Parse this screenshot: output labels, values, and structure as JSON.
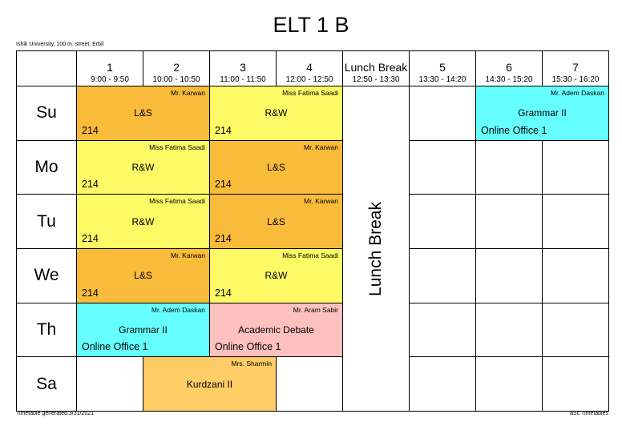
{
  "header": {
    "title": "ELT 1 B",
    "subtitle": "Ishik University, 100 m. street, Erbil"
  },
  "table": {
    "columns": [
      {
        "label": "1",
        "time": "9:00 - 9:50"
      },
      {
        "label": "2",
        "time": "10:00 - 10:50"
      },
      {
        "label": "3",
        "time": "11:00 - 11:50"
      },
      {
        "label": "4",
        "time": "12:00 - 12:50"
      },
      {
        "label": "Lunch Break",
        "time": "12:50 - 13:30",
        "lunch": true
      },
      {
        "label": "5",
        "time": "13:30 - 14:20"
      },
      {
        "label": "6",
        "time": "14:30 - 15:20"
      },
      {
        "label": "7",
        "time": "15:30 - 16:20"
      }
    ],
    "lunch_text": "Lunch Break",
    "rows": [
      {
        "day": "Su",
        "cells": [
          {
            "span": 2,
            "subject": "L&S",
            "teacher": "Mr. Karwan",
            "room": "214",
            "color": "#f9bb3a"
          },
          {
            "span": 2,
            "subject": "R&W",
            "teacher": "Miss Fatima Saadi",
            "room": "214",
            "color": "#fdfa66"
          },
          null,
          {
            "span": 2,
            "subject": "Grammar II",
            "teacher": "Mr. Adem Daskan",
            "room": "Online Office 1",
            "color": "#66ffff"
          }
        ]
      },
      {
        "day": "Mo",
        "cells": [
          {
            "span": 2,
            "subject": "R&W",
            "teacher": "Miss Fatima Saadi",
            "room": "214",
            "color": "#fdfa66"
          },
          {
            "span": 2,
            "subject": "L&S",
            "teacher": "Mr. Karwan",
            "room": "214",
            "color": "#f9bb3a"
          },
          null,
          null,
          null
        ]
      },
      {
        "day": "Tu",
        "cells": [
          {
            "span": 2,
            "subject": "R&W",
            "teacher": "Miss Fatima Saadi",
            "room": "214",
            "color": "#fdfa66"
          },
          {
            "span": 2,
            "subject": "L&S",
            "teacher": "Mr. Karwan",
            "room": "214",
            "color": "#f9bb3a"
          },
          null,
          null,
          null
        ]
      },
      {
        "day": "We",
        "cells": [
          {
            "span": 2,
            "subject": "L&S",
            "teacher": "Mr. Karwan",
            "room": "214",
            "color": "#f9bb3a"
          },
          {
            "span": 2,
            "subject": "R&W",
            "teacher": "Miss Fatima Saadi",
            "room": "214",
            "color": "#fdfa66"
          },
          null,
          null,
          null
        ]
      },
      {
        "day": "Th",
        "cells": [
          {
            "span": 2,
            "subject": "Grammar II",
            "teacher": "Mr. Adem Daskan",
            "room": "Online Office 1",
            "color": "#66ffff"
          },
          {
            "span": 2,
            "subject": "Academic Debate",
            "teacher": "Mr. Aram Sabir",
            "room": "Online Office 1",
            "color": "#ffc0c0"
          },
          null,
          null,
          null
        ]
      },
      {
        "day": "Sa",
        "cells": [
          null,
          {
            "span": 2,
            "subject": "Kurdzani II",
            "teacher": "Mrs. Sharmin",
            "color": "#ffcc66"
          },
          null,
          null,
          null,
          null
        ]
      }
    ]
  },
  "footer": {
    "generated": "Timetable generated:3/31/2021",
    "brand": "aSc Timetables"
  }
}
